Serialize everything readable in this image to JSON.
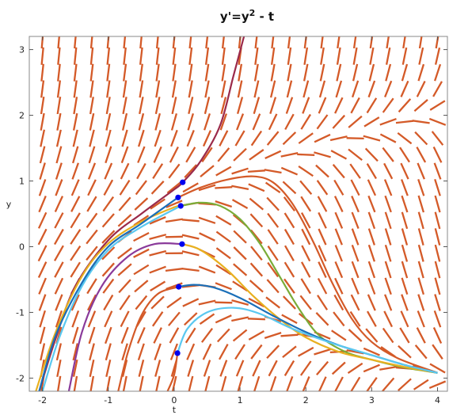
{
  "chart_data": {
    "type": "line",
    "title": "y'=y",
    "title_superscript": "2",
    "title_suffix": " - t",
    "xlabel": "t",
    "ylabel": "y",
    "xlim": [
      -2.2,
      4.15
    ],
    "ylim": [
      -2.2,
      3.2
    ],
    "x_ticks": [
      -2,
      -1,
      0,
      1,
      2,
      3,
      4
    ],
    "y_ticks": [
      -2,
      -1,
      0,
      1,
      2,
      3
    ],
    "grid": false,
    "field_color": "#d45a28",
    "marker_color": "#0000ee",
    "initial_points": [
      {
        "t": 0.13,
        "y": 0.98
      },
      {
        "t": 0.06,
        "y": 0.75
      },
      {
        "t": 0.1,
        "y": 0.62
      },
      {
        "t": 0.12,
        "y": 0.04
      },
      {
        "t": 0.07,
        "y": -0.61
      },
      {
        "t": 0.05,
        "y": -1.62
      }
    ],
    "series": [
      {
        "color": "#9b2a4a",
        "points": [
          [
            -2.05,
            -2.2
          ],
          [
            -1.8,
            -1.4
          ],
          [
            -1.5,
            -0.6
          ],
          [
            -1.0,
            0.1
          ],
          [
            -0.5,
            0.5
          ],
          [
            0.0,
            0.87
          ],
          [
            0.13,
            0.98
          ],
          [
            0.4,
            1.3
          ],
          [
            0.7,
            1.85
          ],
          [
            0.9,
            2.6
          ],
          [
            1.06,
            3.2
          ]
        ]
      },
      {
        "color": "#d45a28",
        "points": [
          [
            0.06,
            0.75
          ],
          [
            0.4,
            0.9
          ],
          [
            0.8,
            1.02
          ],
          [
            1.2,
            1.07
          ],
          [
            1.5,
            0.98
          ],
          [
            1.8,
            0.65
          ],
          [
            2.1,
            0.1
          ],
          [
            2.4,
            -0.55
          ],
          [
            2.7,
            -1.1
          ],
          [
            3.0,
            -1.45
          ],
          [
            3.4,
            -1.7
          ],
          [
            4.0,
            -1.92
          ]
        ]
      },
      {
        "color": "#e8b020",
        "points": [
          [
            -2.1,
            -2.2
          ],
          [
            -1.8,
            -1.3
          ],
          [
            -1.4,
            -0.45
          ],
          [
            -1.0,
            0.05
          ],
          [
            -0.5,
            0.38
          ],
          [
            0.0,
            0.6
          ],
          [
            0.1,
            0.62
          ]
        ]
      },
      {
        "color": "#7aac38",
        "points": [
          [
            0.1,
            0.62
          ],
          [
            0.4,
            0.67
          ],
          [
            0.7,
            0.62
          ],
          [
            1.0,
            0.42
          ],
          [
            1.3,
            0.05
          ],
          [
            1.6,
            -0.45
          ],
          [
            1.9,
            -0.95
          ],
          [
            2.2,
            -1.35
          ],
          [
            2.6,
            -1.6
          ],
          [
            3.0,
            -1.72
          ],
          [
            3.5,
            -1.84
          ],
          [
            4.0,
            -1.92
          ]
        ]
      },
      {
        "color": "#5ac8f0",
        "points": [
          [
            -2.0,
            -2.2
          ],
          [
            -1.75,
            -1.4
          ],
          [
            -1.4,
            -0.6
          ],
          [
            -1.0,
            -0.05
          ],
          [
            -0.5,
            0.3
          ],
          [
            0.1,
            0.62
          ]
        ]
      },
      {
        "color": "#8a3a9a",
        "points": [
          [
            -1.6,
            -2.2
          ],
          [
            -1.4,
            -1.3
          ],
          [
            -1.1,
            -0.6
          ],
          [
            -0.7,
            -0.15
          ],
          [
            -0.3,
            0.04
          ],
          [
            0.12,
            0.04
          ]
        ]
      },
      {
        "color": "#e8b020",
        "points": [
          [
            0.12,
            0.04
          ],
          [
            0.4,
            -0.05
          ],
          [
            0.8,
            -0.35
          ],
          [
            1.2,
            -0.75
          ],
          [
            1.6,
            -1.1
          ],
          [
            2.0,
            -1.38
          ],
          [
            2.5,
            -1.6
          ],
          [
            3.0,
            -1.72
          ],
          [
            3.5,
            -1.83
          ],
          [
            4.0,
            -1.92
          ]
        ]
      },
      {
        "color": "#d45a28",
        "points": [
          [
            -0.85,
            -2.2
          ],
          [
            -0.7,
            -1.6
          ],
          [
            -0.5,
            -1.05
          ],
          [
            -0.25,
            -0.72
          ],
          [
            0.07,
            -0.61
          ]
        ]
      },
      {
        "color": "#1a6fb8",
        "points": [
          [
            0.07,
            -0.61
          ],
          [
            0.3,
            -0.58
          ],
          [
            0.6,
            -0.62
          ],
          [
            1.0,
            -0.78
          ],
          [
            1.5,
            -1.05
          ],
          [
            2.0,
            -1.3
          ],
          [
            2.5,
            -1.5
          ],
          [
            3.0,
            -1.65
          ],
          [
            3.5,
            -1.8
          ],
          [
            4.0,
            -1.92
          ]
        ]
      },
      {
        "color": "#1a6fb8",
        "points": [
          [
            -2.05,
            -2.2
          ],
          [
            -1.8,
            -1.35
          ],
          [
            -1.4,
            -0.55
          ],
          [
            -1.0,
            0.0
          ],
          [
            -0.5,
            0.35
          ],
          [
            0.06,
            0.75
          ]
        ]
      },
      {
        "color": "#d45a28",
        "points": [
          [
            -0.1,
            -2.2
          ],
          [
            0.0,
            -1.95
          ],
          [
            0.05,
            -1.62
          ]
        ]
      },
      {
        "color": "#5ac8f0",
        "points": [
          [
            0.05,
            -1.62
          ],
          [
            0.2,
            -1.25
          ],
          [
            0.5,
            -1.0
          ],
          [
            0.9,
            -0.93
          ],
          [
            1.3,
            -1.02
          ],
          [
            1.8,
            -1.25
          ],
          [
            2.4,
            -1.47
          ],
          [
            3.0,
            -1.65
          ],
          [
            3.5,
            -1.8
          ],
          [
            4.0,
            -1.92
          ]
        ]
      }
    ]
  }
}
